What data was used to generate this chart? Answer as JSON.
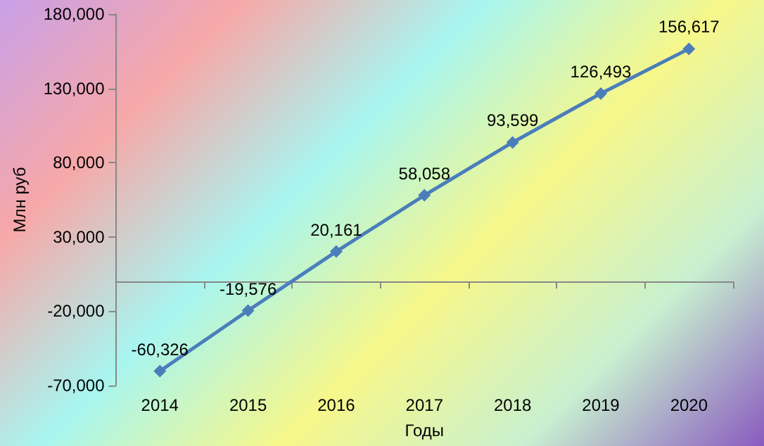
{
  "chart_data": {
    "type": "line",
    "xlabel": "Годы",
    "ylabel": "Млн руб",
    "categories": [
      "2014",
      "2015",
      "2016",
      "2017",
      "2018",
      "2019",
      "2020"
    ],
    "series": [
      {
        "color": "#4a7ebb",
        "values": [
          -60326,
          -19576,
          20161,
          58058,
          93599,
          126493,
          156617
        ],
        "value_labels": [
          "-60,326",
          "-19,576",
          "20,161",
          "58,058",
          "93,599",
          "126,493",
          "156,617"
        ]
      }
    ],
    "ylim": [
      -70000,
      180000
    ],
    "yticks": [
      {
        "value": -70000,
        "label": "-70,000"
      },
      {
        "value": -20000,
        "label": "-20,000"
      },
      {
        "value": 30000,
        "label": "30,000"
      },
      {
        "value": 80000,
        "label": "80,000"
      },
      {
        "value": 130000,
        "label": "130,000"
      },
      {
        "value": 180000,
        "label": "180,000"
      }
    ],
    "grid": false,
    "marker": "diamond",
    "line_style": "solid"
  }
}
